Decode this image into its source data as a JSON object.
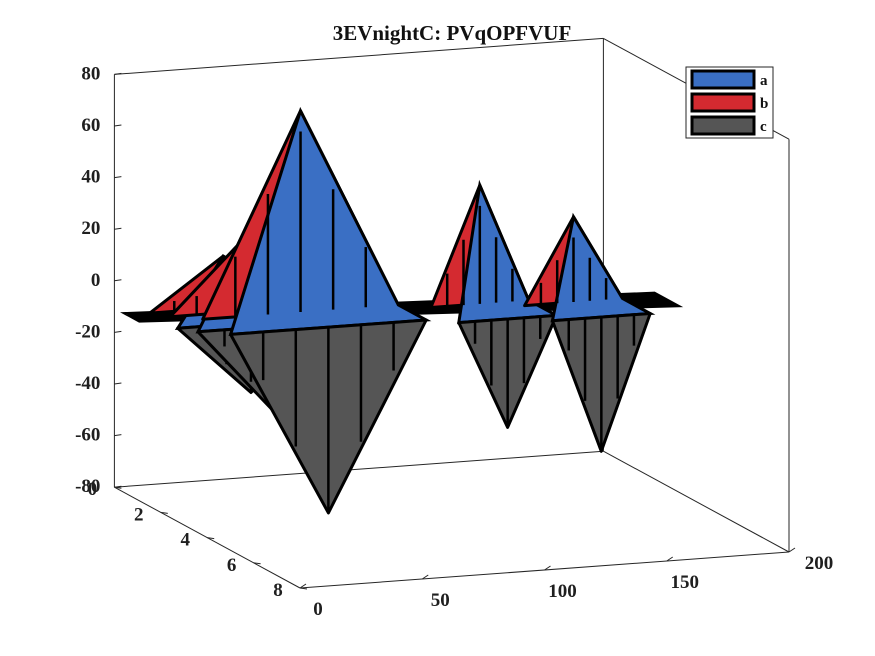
{
  "chart_data": {
    "type": "3d-ribbon",
    "title": "3EVnightC: PVqOPFVUF",
    "xlabel": "",
    "ylabel": "",
    "zlabel": "",
    "x_ticks": [
      "0",
      "50",
      "100",
      "150",
      "200"
    ],
    "y_ticks": [
      "0",
      "2",
      "4",
      "6",
      "8"
    ],
    "z_ticks": [
      "80",
      "60",
      "40",
      "20",
      "0",
      "-20",
      "-40",
      "-60",
      "-80"
    ],
    "xlim": [
      0,
      200
    ],
    "ylim": [
      0,
      8
    ],
    "zlim": [
      -80,
      80
    ],
    "legend_position": "top-right",
    "series": [
      {
        "name": "a",
        "color": "#3a6fc4"
      },
      {
        "name": "b",
        "color": "#d42a30"
      },
      {
        "name": "c",
        "color": "#555555"
      }
    ],
    "groups": [
      {
        "x": [
          5,
          35,
          65
        ],
        "b_peak": 12,
        "c_peak": -35
      },
      {
        "x": [
          10,
          40,
          75
        ],
        "b_peak": 20,
        "c_peak": -40
      },
      {
        "x": [
          20,
          60,
          100
        ],
        "b_peak": 70,
        "c_peak": -80
      },
      {
        "x": [
          110,
          130,
          150
        ],
        "b_peak": 38,
        "c_peak": -50
      },
      {
        "x": [
          145,
          165,
          185
        ],
        "b_peak": 25,
        "c_peak": -60
      }
    ]
  }
}
